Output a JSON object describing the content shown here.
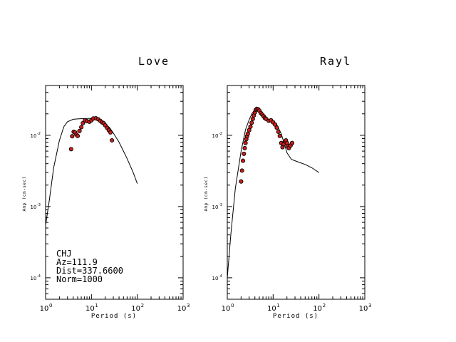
{
  "chart_data": [
    {
      "type": "line",
      "title": "Love",
      "xlabel": "Period (s)",
      "ylabel": "Amp (cm-sec)",
      "xscale": "log",
      "yscale": "log",
      "xlim": [
        1,
        1000
      ],
      "ylim": [
        5e-05,
        0.05
      ],
      "xticks": [
        "10",
        "10",
        "10",
        "10"
      ],
      "xtick_exp": [
        "0",
        "1",
        "2",
        "3"
      ],
      "yticks": [
        "10",
        "10",
        "10"
      ],
      "ytick_exp": [
        "-4",
        "-3",
        "-2"
      ],
      "ytick_values": [
        0.0001,
        0.001,
        0.01
      ],
      "station": {
        "name": "CHJ",
        "az": "Az=111.9",
        "dist": "Dist=337.6600",
        "norm": "Norm=1000"
      },
      "series": [
        {
          "kind": "model",
          "x": [
            1.0,
            1.2,
            1.5,
            2.0,
            2.5,
            3.0,
            4.0,
            5.0,
            6.0,
            8.0,
            10.0,
            12.0,
            15.0,
            20.0,
            25.0,
            30.0,
            40.0,
            50.0,
            60.0,
            80.0,
            100.0
          ],
          "y": [
            0.00055,
            0.0012,
            0.0035,
            0.0085,
            0.0132,
            0.0155,
            0.0168,
            0.017,
            0.0171,
            0.0172,
            0.0172,
            0.017,
            0.0165,
            0.0145,
            0.0128,
            0.0108,
            0.008,
            0.006,
            0.0047,
            0.0031,
            0.0021
          ]
        },
        {
          "kind": "observed",
          "x": [
            3.6,
            3.8,
            4.1,
            4.4,
            4.7,
            5.0,
            5.5,
            6.0,
            6.5,
            7.2,
            8.0,
            9.0,
            10.0,
            11.0,
            12.5,
            14.0,
            15.5,
            17.0,
            18.5,
            20.0,
            22.0,
            24.0,
            26.0,
            28.0
          ],
          "y": [
            0.0064,
            0.0097,
            0.0112,
            0.011,
            0.0102,
            0.0098,
            0.0115,
            0.013,
            0.0148,
            0.0162,
            0.0158,
            0.0155,
            0.0162,
            0.0172,
            0.0173,
            0.0168,
            0.016,
            0.0152,
            0.0148,
            0.0138,
            0.0127,
            0.0118,
            0.011,
            0.0085
          ]
        }
      ]
    },
    {
      "type": "line",
      "title": "Rayl",
      "xlabel": "Period (s)",
      "ylabel": "Amp (cm-sec)",
      "xscale": "log",
      "yscale": "log",
      "xlim": [
        1,
        1000
      ],
      "ylim": [
        5e-05,
        0.05
      ],
      "xticks": [
        "10",
        "10",
        "10",
        "10"
      ],
      "xtick_exp": [
        "0",
        "1",
        "2",
        "3"
      ],
      "yticks": [
        "10",
        "10",
        "10"
      ],
      "ytick_exp": [
        "-4",
        "-3",
        "-2"
      ],
      "ytick_values": [
        0.0001,
        0.001,
        0.01
      ],
      "series": [
        {
          "kind": "model",
          "x": [
            1.0,
            1.2,
            1.5,
            2.0,
            2.5,
            3.0,
            3.5,
            4.0,
            4.5,
            5.0,
            6.0,
            7.0,
            8.0,
            10.0,
            12.0,
            15.0,
            18.0,
            20.0,
            25.0,
            30.0,
            40.0,
            50.0,
            70.0,
            100.0
          ],
          "y": [
            0.0001,
            0.00042,
            0.0018,
            0.006,
            0.012,
            0.0165,
            0.0205,
            0.0225,
            0.0228,
            0.0222,
            0.02,
            0.0178,
            0.0166,
            0.0158,
            0.0142,
            0.0105,
            0.0072,
            0.0057,
            0.0046,
            0.0044,
            0.0041,
            0.0039,
            0.0035,
            0.003
          ]
        },
        {
          "kind": "observed",
          "x": [
            2.0,
            2.1,
            2.2,
            2.3,
            2.4,
            2.5,
            2.6,
            2.7,
            2.8,
            3.0,
            3.2,
            3.4,
            3.6,
            3.8,
            4.0,
            4.2,
            4.4,
            4.7,
            5.0,
            5.4,
            5.8,
            6.2,
            6.6,
            7.0,
            8.0,
            9.0,
            10.0,
            11.0,
            12.0,
            13.0,
            14.0,
            15.0,
            16.0,
            17.0,
            18.0,
            19.0,
            20.0,
            21.0,
            22.0,
            24.0,
            26.0
          ],
          "y": [
            0.00225,
            0.0032,
            0.0044,
            0.0055,
            0.0066,
            0.0078,
            0.0088,
            0.0097,
            0.0105,
            0.0118,
            0.0132,
            0.015,
            0.017,
            0.019,
            0.021,
            0.0228,
            0.0235,
            0.0232,
            0.0222,
            0.0205,
            0.0195,
            0.0185,
            0.0175,
            0.017,
            0.016,
            0.0162,
            0.0152,
            0.0142,
            0.0128,
            0.0112,
            0.0098,
            0.0078,
            0.0068,
            0.0075,
            0.0082,
            0.0085,
            0.0078,
            0.007,
            0.0066,
            0.0072,
            0.0078
          ]
        }
      ]
    }
  ]
}
